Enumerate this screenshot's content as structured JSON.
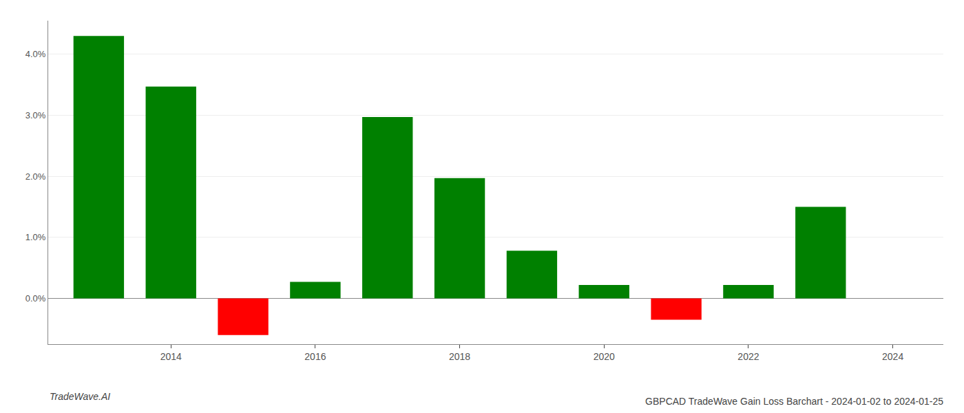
{
  "chart_data": {
    "type": "bar",
    "title": "GBPCAD TradeWave Gain Loss Barchart - 2024-01-02 to 2024-01-25",
    "annotations": [
      "TradeWave.AI"
    ],
    "x": [
      2013,
      2014,
      2015,
      2016,
      2017,
      2018,
      2019,
      2020,
      2021,
      2022,
      2023
    ],
    "values": [
      0.043,
      0.0347,
      -0.006,
      0.0027,
      0.0297,
      0.0197,
      0.0078,
      0.0022,
      -0.0035,
      0.0022,
      0.015
    ],
    "colors": [
      "#008000",
      "#008000",
      "#ff0000",
      "#008000",
      "#008000",
      "#008000",
      "#008000",
      "#008000",
      "#ff0000",
      "#008000",
      "#008000"
    ],
    "xlim": [
      2012.3,
      2024.7
    ],
    "xticks": [
      2014,
      2016,
      2018,
      2020,
      2022,
      2024
    ],
    "ylim": [
      -0.0075,
      0.0455
    ],
    "yticks": [
      {
        "value": 0.0,
        "label": "0.0%"
      },
      {
        "value": 0.01,
        "label": "1.0%"
      },
      {
        "value": 0.02,
        "label": "2.0%"
      },
      {
        "value": 0.03,
        "label": "3.0%"
      },
      {
        "value": 0.04,
        "label": "4.0%"
      }
    ],
    "grid": true
  }
}
